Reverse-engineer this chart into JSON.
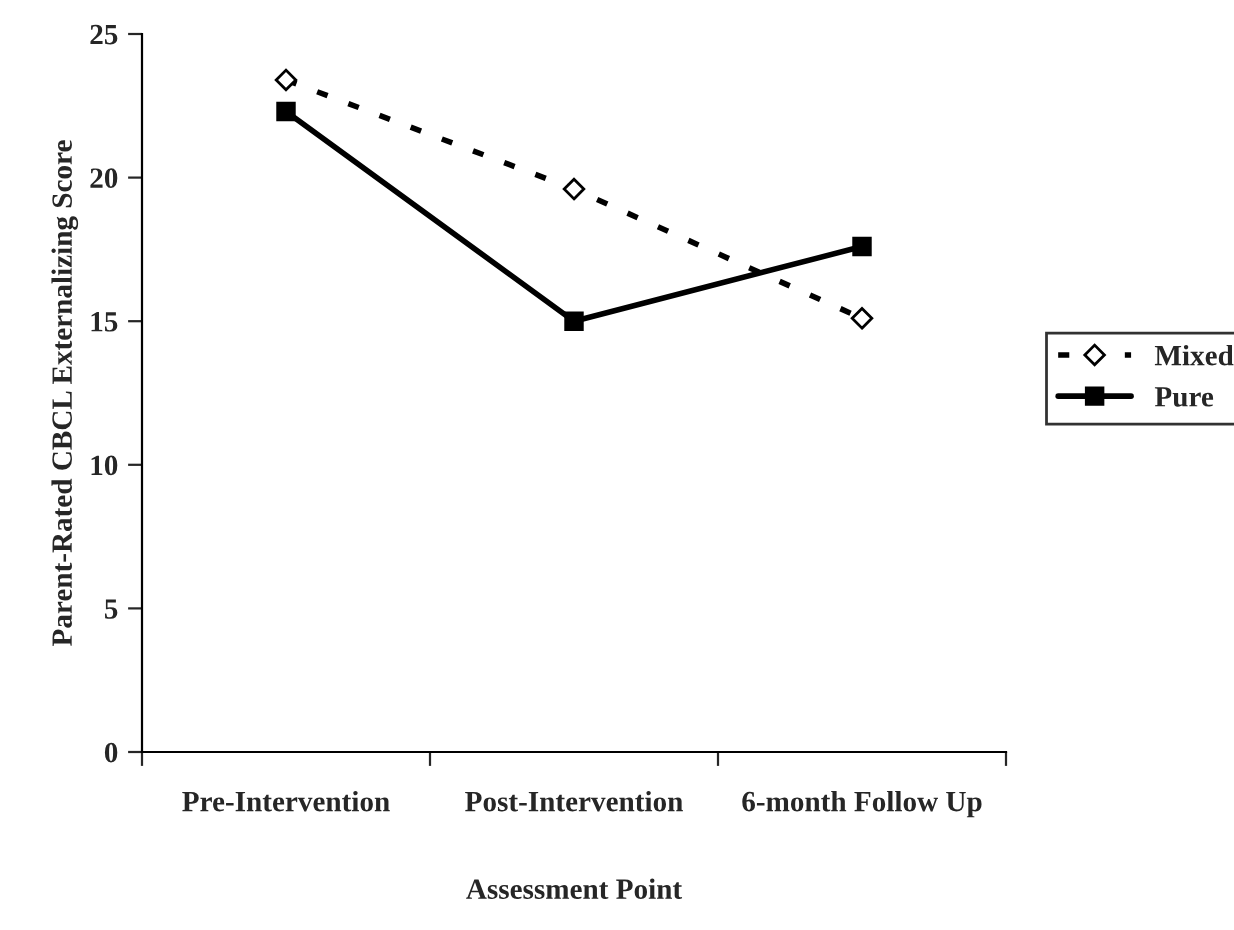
{
  "chart_data": {
    "type": "line",
    "xlabel": "Assessment Point",
    "ylabel": "Parent-Rated CBCL Externalizing Score",
    "categories": [
      "Pre-Intervention",
      "Post-Intervention",
      "6-month Follow Up"
    ],
    "series": [
      {
        "name": "Mixed",
        "color": "#000000",
        "values": [
          23.4,
          19.6,
          15.1
        ],
        "marker": "diamond",
        "line_style": "dashed"
      },
      {
        "name": "Pure",
        "color": "#000000",
        "values": [
          22.3,
          15.0,
          17.6
        ],
        "marker": "square",
        "line_style": "solid"
      }
    ],
    "ylim": [
      0,
      25
    ],
    "yticks": [
      0,
      5,
      10,
      15,
      20,
      25
    ],
    "grid": false,
    "legend": "right"
  }
}
